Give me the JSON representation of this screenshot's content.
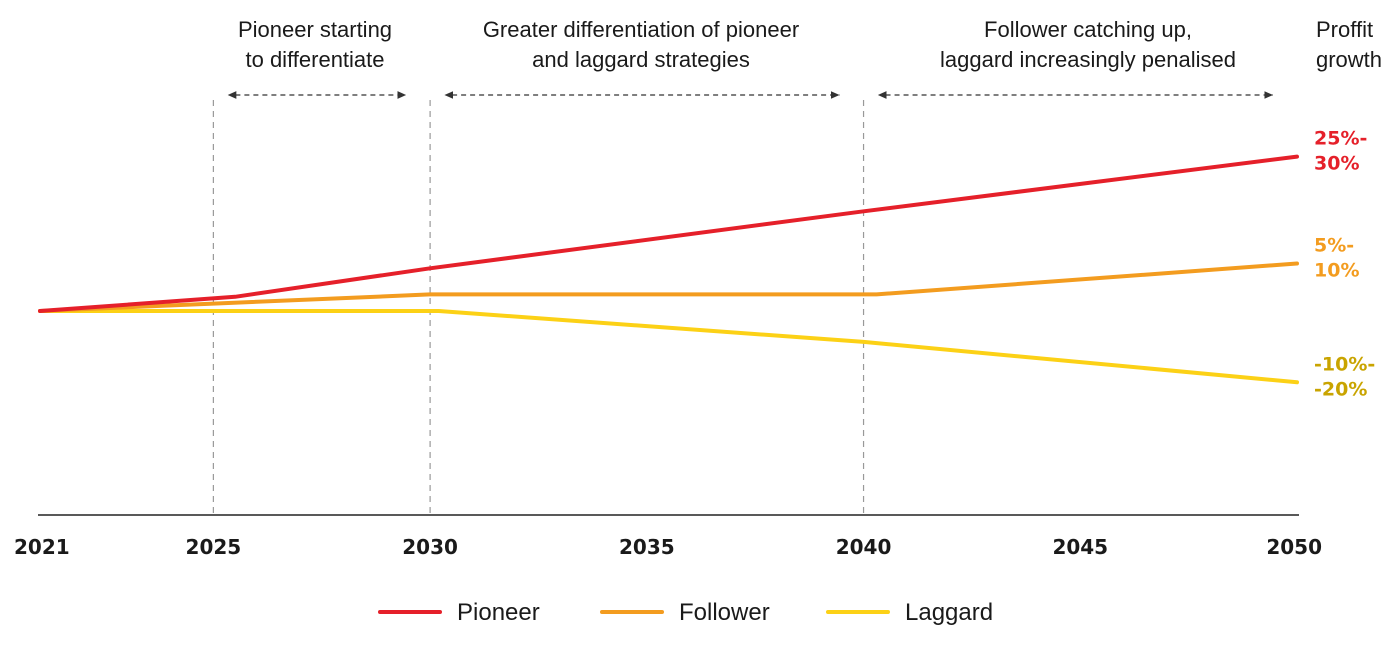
{
  "chart_data": {
    "type": "line",
    "ylabel": [
      "Proffit",
      "growth"
    ],
    "xticks": [
      "2021",
      "2025",
      "2030",
      "2035",
      "2040",
      "2045",
      "2050"
    ],
    "xlim": [
      2021,
      2050
    ],
    "y_scale": "relative profit growth (unlabelled axis)",
    "ylim": [
      -35,
      35
    ],
    "grid": "vertical dashed lines at 2025, 2030, 2040",
    "phases": [
      {
        "from": 2025,
        "to": 2030,
        "lines": [
          "Pioneer starting",
          "to differentiate"
        ]
      },
      {
        "from": 2030,
        "to": 2040,
        "lines": [
          "Greater differentiation of pioneer",
          "and laggard strategies"
        ]
      },
      {
        "from": 2040,
        "to": 2050,
        "lines": [
          "Follower catching up,",
          "laggard increasingly penalised"
        ]
      }
    ],
    "series": [
      {
        "name": "Pioneer",
        "color": "#e5202a",
        "points": [
          [
            2021,
            0
          ],
          [
            2025.5,
            3
          ],
          [
            2030,
            9
          ],
          [
            2040,
            21
          ],
          [
            2050,
            32.5
          ]
        ],
        "end_label": [
          "25%-",
          "30%"
        ]
      },
      {
        "name": "Follower",
        "color": "#f39c1f",
        "points": [
          [
            2021,
            0
          ],
          [
            2030,
            3.5
          ],
          [
            2040.3,
            3.5
          ],
          [
            2050,
            10
          ]
        ],
        "end_label": [
          "5%-",
          "10%"
        ]
      },
      {
        "name": "Laggard",
        "color": "#fcd116",
        "points": [
          [
            2021,
            0
          ],
          [
            2030.2,
            0
          ],
          [
            2040,
            -6.5
          ],
          [
            2050,
            -15
          ]
        ],
        "end_label": [
          "-10%-",
          "-20%"
        ],
        "label_color": "#c9a400"
      }
    ],
    "legend": {
      "position": "bottom-center",
      "items": [
        "Pioneer",
        "Follower",
        "Laggard"
      ]
    }
  }
}
